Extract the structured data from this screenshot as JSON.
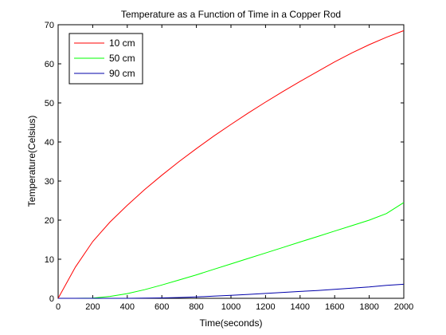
{
  "chart_data": {
    "type": "line",
    "title": "Temperature as a Function of Time in a Copper Rod",
    "xlabel": "Time(seconds)",
    "ylabel": "Temperature(Celsius)",
    "xlim": [
      0,
      2000
    ],
    "ylim": [
      0,
      70
    ],
    "xticks": [
      0,
      200,
      400,
      600,
      800,
      1000,
      1200,
      1400,
      1600,
      1800,
      2000
    ],
    "yticks": [
      0,
      10,
      20,
      30,
      40,
      50,
      60,
      70
    ],
    "grid": false,
    "legend_position": "top-left",
    "x": [
      0,
      100,
      200,
      300,
      400,
      500,
      600,
      700,
      800,
      900,
      1000,
      1100,
      1200,
      1300,
      1400,
      1500,
      1600,
      1700,
      1800,
      1900,
      2000
    ],
    "series": [
      {
        "name": "10 cm",
        "color": "#ff0000",
        "values": [
          0,
          8.0,
          14.5,
          19.5,
          23.8,
          27.8,
          31.5,
          35.0,
          38.3,
          41.5,
          44.5,
          47.4,
          50.2,
          52.9,
          55.5,
          58.0,
          60.5,
          62.8,
          64.9,
          66.8,
          68.5
        ]
      },
      {
        "name": "50 cm",
        "color": "#00ff00",
        "values": [
          0,
          0,
          0.05,
          0.5,
          1.2,
          2.2,
          3.4,
          4.7,
          6.0,
          7.4,
          8.8,
          10.2,
          11.6,
          13.0,
          14.4,
          15.8,
          17.2,
          18.6,
          20.0,
          21.7,
          24.5
        ]
      },
      {
        "name": "90 cm",
        "color": "#0000aa",
        "values": [
          0,
          0,
          0,
          0,
          0,
          0.05,
          0.1,
          0.2,
          0.35,
          0.55,
          0.75,
          1.0,
          1.25,
          1.5,
          1.75,
          2.0,
          2.3,
          2.6,
          2.9,
          3.3,
          3.6
        ]
      }
    ]
  }
}
